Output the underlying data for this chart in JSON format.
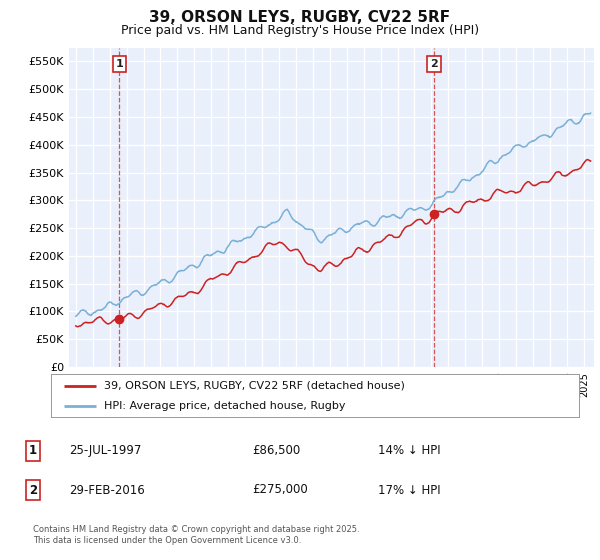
{
  "title": "39, ORSON LEYS, RUGBY, CV22 5RF",
  "subtitle": "Price paid vs. HM Land Registry's House Price Index (HPI)",
  "ylim": [
    0,
    575000
  ],
  "yticks": [
    0,
    50000,
    100000,
    150000,
    200000,
    250000,
    300000,
    350000,
    400000,
    450000,
    500000,
    550000
  ],
  "ytick_labels": [
    "£0",
    "£50K",
    "£100K",
    "£150K",
    "£200K",
    "£250K",
    "£300K",
    "£350K",
    "£400K",
    "£450K",
    "£500K",
    "£550K"
  ],
  "bg_color": "#eaf0fb",
  "grid_color": "#ffffff",
  "sale1_date": 1997.57,
  "sale1_price": 86500,
  "sale1_label": "1",
  "sale2_date": 2016.16,
  "sale2_price": 275000,
  "sale2_label": "2",
  "line_color_red": "#cc2222",
  "line_color_blue": "#7ab0d8",
  "legend_label_red": "39, ORSON LEYS, RUGBY, CV22 5RF (detached house)",
  "legend_label_blue": "HPI: Average price, detached house, Rugby",
  "footer": "Contains HM Land Registry data © Crown copyright and database right 2025.\nThis data is licensed under the Open Government Licence v3.0.",
  "table_rows": [
    {
      "num": "1",
      "date": "25-JUL-1997",
      "price": "£86,500",
      "hpi": "14% ↓ HPI"
    },
    {
      "num": "2",
      "date": "29-FEB-2016",
      "price": "£275,000",
      "hpi": "17% ↓ HPI"
    }
  ],
  "xlim_left": 1994.6,
  "xlim_right": 2025.6
}
